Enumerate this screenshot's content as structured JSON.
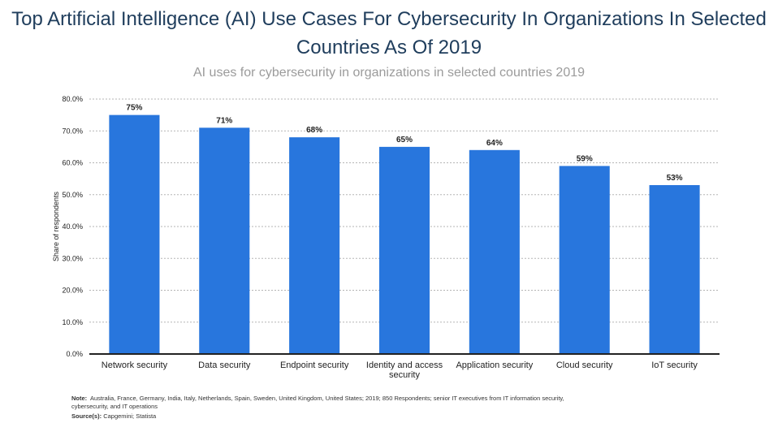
{
  "title": "Top Artificial Intelligence (AI) Use Cases For Cybersecurity In Organizations In Selected Countries As Of 2019",
  "subtitle": "AI uses for cybersecurity in organizations in selected countries 2019",
  "footer": {
    "note_label": "Note:",
    "note_text": "Australia, France, Germany, India, Italy, Netherlands, Spain, Sweden, United Kingdom, United States; 2019; 850 Respondents; senior IT executives from IT information security, cybersecurity, and IT operations",
    "source_label": "Source(s):",
    "source_text": "Capgemini; Statista"
  },
  "colors": {
    "bar": "#2876dd",
    "grid": "#b5b5b5",
    "axis": "#222222"
  },
  "chart_data": {
    "type": "bar",
    "categories": [
      "Network security",
      "Data security",
      "Endpoint security",
      "Identity and access security",
      "Application security",
      "Cloud security",
      "IoT security"
    ],
    "values": [
      75,
      71,
      68,
      65,
      64,
      59,
      53
    ],
    "value_labels": [
      "75%",
      "71%",
      "68%",
      "65%",
      "64%",
      "59%",
      "53%"
    ],
    "ylabel": "Share of respondents",
    "ylim": [
      0,
      80
    ],
    "yticks": [
      0,
      10,
      20,
      30,
      40,
      50,
      60,
      70,
      80
    ],
    "ytick_labels": [
      "0.0%",
      "10.0%",
      "20.0%",
      "30.0%",
      "40.0%",
      "50.0%",
      "60.0%",
      "70.0%",
      "80.0%"
    ],
    "grid": true,
    "legend": "none"
  }
}
